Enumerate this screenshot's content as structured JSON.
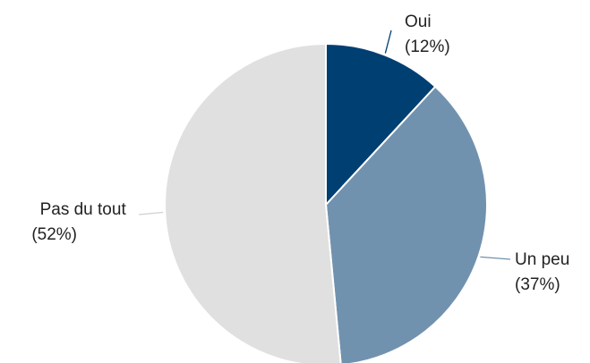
{
  "chart_data": {
    "type": "pie",
    "title": "",
    "start_angle_deg": 0,
    "direction": "clockwise",
    "slices": [
      {
        "name": "Oui",
        "label": "Oui",
        "value_label": "(12%)",
        "value": 12,
        "color": "#003f72"
      },
      {
        "name": "Un peu",
        "label": "Un peu",
        "value_label": "(37%)",
        "value": 37,
        "color": "#7192ae"
      },
      {
        "name": "Pas du tout",
        "label": "Pas du tout",
        "value_label": "(52%)",
        "value": 52,
        "color": "#e0e0e0"
      }
    ],
    "legend": "none",
    "label_position": "outside-with-leader-lines"
  }
}
